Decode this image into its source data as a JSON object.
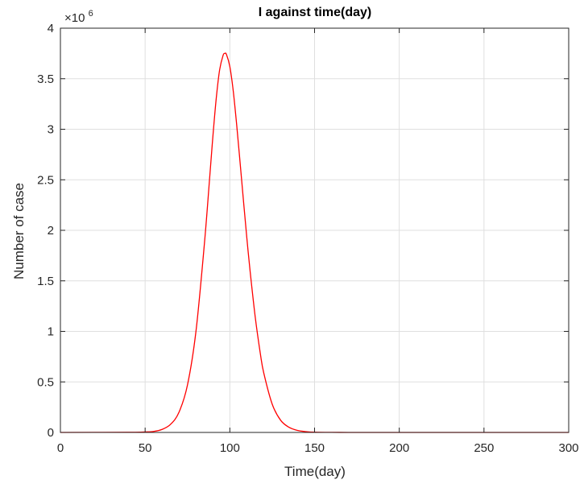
{
  "chart_data": {
    "type": "line",
    "title": "I against time(day)",
    "xlabel": "Time(day)",
    "ylabel": "Number of case",
    "xlim": [
      0,
      300
    ],
    "ylim": [
      0,
      4000000
    ],
    "x_ticks": [
      0,
      50,
      100,
      150,
      200,
      250,
      300
    ],
    "x_tick_labels": [
      "0",
      "50",
      "100",
      "150",
      "200",
      "250",
      "300"
    ],
    "y_ticks": [
      0,
      500000,
      1000000,
      1500000,
      2000000,
      2500000,
      3000000,
      3500000,
      4000000
    ],
    "y_tick_labels": [
      "0",
      "0.5",
      "1",
      "1.5",
      "2",
      "2.5",
      "3",
      "3.5",
      "4"
    ],
    "y_exponent": {
      "base": "×10",
      "power": "6"
    },
    "grid": true,
    "legend": "none",
    "series": [
      {
        "color": "#ff0000",
        "x": [
          0,
          40,
          50,
          55,
          60,
          65,
          70,
          75,
          80,
          85,
          88,
          90,
          92,
          94,
          96,
          97,
          98,
          100,
          102,
          104,
          106,
          108,
          110,
          112,
          115,
          118,
          120,
          125,
          130,
          135,
          140,
          145,
          150,
          160,
          170,
          180,
          200,
          250,
          300
        ],
        "y": [
          0,
          2000,
          5000,
          10000,
          30000,
          80000,
          200000,
          470000,
          1000000,
          1870000,
          2500000,
          2930000,
          3310000,
          3590000,
          3730000,
          3750000,
          3740000,
          3620000,
          3380000,
          3050000,
          2680000,
          2300000,
          1930000,
          1590000,
          1140000,
          780000,
          590000,
          280000,
          120000,
          50000,
          20000,
          8000,
          3000,
          800,
          200,
          50,
          0,
          0,
          0
        ]
      }
    ]
  }
}
